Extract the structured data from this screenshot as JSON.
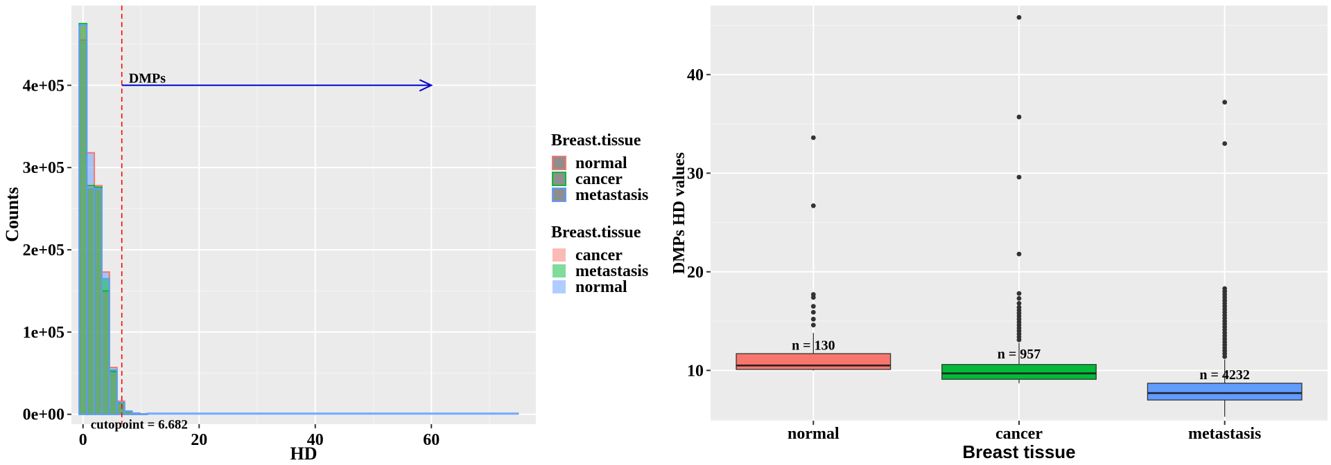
{
  "chart_data": [
    {
      "type": "histogram",
      "xlabel": "HD",
      "ylabel": "Counts",
      "xlim": [
        -2,
        78
      ],
      "ylim": [
        -12000,
        497000
      ],
      "xticks": [
        0,
        20,
        40,
        60
      ],
      "yticks": [
        0,
        100000,
        200000,
        300000,
        400000
      ],
      "ytick_labels": [
        "0e+00",
        "1e+05",
        "2e+05",
        "3e+05",
        "4e+05"
      ],
      "bin_width": 1.3,
      "bin_starts": [
        -0.65,
        0.65,
        1.95,
        3.25,
        4.55,
        5.85,
        7.15,
        8.45,
        9.75
      ],
      "series": [
        {
          "name": "normal",
          "fill": "#619CFF",
          "outline": "#F8766D",
          "values": [
            455000,
            318000,
            278000,
            173000,
            57000,
            16000,
            4000,
            1500,
            500
          ]
        },
        {
          "name": "cancer",
          "fill": "#F8766D",
          "outline": "#00BA38",
          "values": [
            475000,
            278000,
            276000,
            150000,
            52000,
            14000,
            3500,
            1200,
            400
          ]
        },
        {
          "name": "metastasis",
          "fill": "#00BA38",
          "outline": "#619CFF",
          "values": [
            473000,
            275000,
            274000,
            165000,
            54000,
            14500,
            3800,
            1300,
            450
          ]
        }
      ],
      "tail": {
        "x_end": 75,
        "y": 800
      },
      "cutoff": {
        "x": 6.682,
        "label": "cutopoint = 6.682",
        "color": "#FF0000"
      },
      "arrow": {
        "label": "DMPs",
        "x_start": 6.682,
        "x_end": 60,
        "y": 400000,
        "color": "#0000CD"
      },
      "legend_outline": {
        "title": "Breast.tissue",
        "items": [
          "normal",
          "cancer",
          "metastasis"
        ]
      },
      "legend_fill": {
        "title": "Breast.tissue",
        "items": [
          "cancer",
          "metastasis",
          "normal"
        ]
      },
      "legend_colors": {
        "red": "#F8766D",
        "green": "#00BA38",
        "blue": "#619CFF"
      },
      "grid": true
    },
    {
      "type": "box",
      "xlabel": "Breast tissue",
      "ylabel": "DMPs HD values",
      "ylim": [
        4.9,
        47
      ],
      "yticks": [
        10,
        20,
        30,
        40
      ],
      "categories": [
        "normal",
        "cancer",
        "metastasis"
      ],
      "groups": [
        {
          "name": "normal",
          "color": "#F8766D",
          "n_label": "n = 130",
          "n_label_y": 12.6,
          "lower_whisker": 10.0,
          "q1": 10.1,
          "median": 10.5,
          "q3": 11.7,
          "upper_whisker": 13.8,
          "outliers": [
            14.6,
            15.2,
            15.9,
            16.5,
            17.4,
            17.7,
            26.7,
            33.6
          ]
        },
        {
          "name": "cancer",
          "color": "#00BA38",
          "n_label": "n = 957",
          "n_label_y": 11.7,
          "lower_whisker": 8.7,
          "q1": 9.1,
          "median": 9.7,
          "q3": 10.6,
          "upper_whisker": 12.8,
          "outliers": [
            13.1,
            13.4,
            13.7,
            14.0,
            14.3,
            14.6,
            14.9,
            15.2,
            15.5,
            15.8,
            16.1,
            16.4,
            16.8,
            17.3,
            17.8,
            21.8,
            29.6,
            35.7,
            45.8
          ]
        },
        {
          "name": "metastasis",
          "color": "#619CFF",
          "n_label": "n = 4232",
          "n_label_y": 9.6,
          "lower_whisker": 5.3,
          "q1": 7.0,
          "median": 7.7,
          "q3": 8.7,
          "upper_whisker": 11.1,
          "outliers": [
            11.4,
            11.7,
            12.0,
            12.3,
            12.6,
            12.9,
            13.2,
            13.5,
            13.8,
            14.1,
            14.4,
            14.7,
            15.0,
            15.3,
            15.6,
            15.9,
            16.2,
            16.5,
            16.8,
            17.1,
            17.4,
            17.7,
            18.0,
            18.3,
            33.0,
            37.2
          ]
        }
      ],
      "grid": true
    }
  ]
}
